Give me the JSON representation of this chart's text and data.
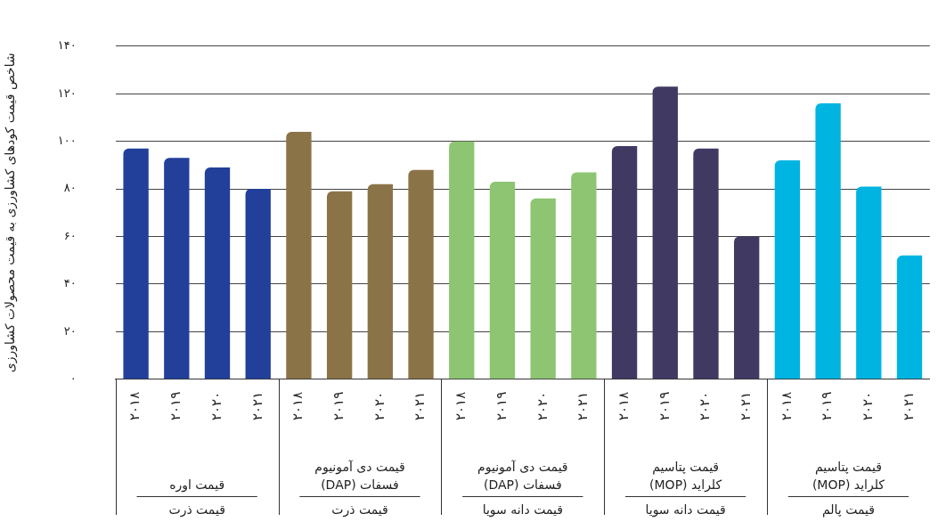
{
  "chart_data": {
    "type": "bar",
    "ylabel": "شاخص قیمت کودهای کشاورزی به قیمت محصولات کشاورزی",
    "categories": [
      "۲۰۱۸",
      "۲۰۱۹",
      "۲۰۲۰",
      "۲۰۲۱",
      "۲۰۱۸",
      "۲۰۱۹",
      "۲۰۲۰",
      "۲۰۲۱",
      "۲۰۱۸",
      "۲۰۱۹",
      "۲۰۲۰",
      "۲۰۲۱",
      "۲۰۱۸",
      "۲۰۱۹",
      "۲۰۲۰",
      "۲۰۲۱",
      "۲۰۱۸",
      "۲۰۱۹",
      "۲۰۲۰",
      "۲۰۲۱"
    ],
    "series": [
      {
        "color": "#22409a",
        "values": [
          97,
          93,
          89,
          80,
          null,
          null,
          null,
          null,
          null,
          null,
          null,
          null,
          null,
          null,
          null,
          null,
          null,
          null,
          null,
          null
        ]
      },
      {
        "color": "#8b7348",
        "values": [
          null,
          null,
          null,
          null,
          104,
          79,
          82,
          88,
          null,
          null,
          null,
          null,
          null,
          null,
          null,
          null,
          null,
          null,
          null,
          null
        ]
      },
      {
        "color": "#8dc572",
        "values": [
          null,
          null,
          null,
          null,
          null,
          null,
          null,
          null,
          100,
          83,
          76,
          87,
          null,
          null,
          null,
          null,
          null,
          null,
          null,
          null
        ]
      },
      {
        "color": "#403a63",
        "values": [
          null,
          null,
          null,
          null,
          null,
          null,
          null,
          null,
          null,
          null,
          null,
          null,
          98,
          123,
          97,
          60,
          null,
          null,
          null,
          null
        ]
      },
      {
        "color": "#00b4e2",
        "values": [
          null,
          null,
          null,
          null,
          null,
          null,
          null,
          null,
          null,
          null,
          null,
          null,
          null,
          null,
          null,
          null,
          92,
          116,
          81,
          52
        ]
      }
    ],
    "annotations": [
      "قیمت اوره",
      "قیمت ذرت",
      "قیمت دی آمونیوم فسفات (DAP)",
      "قیمت ذرت",
      "قیمت دی آمونیوم فسفات (DAP)",
      "قیمت دانه سویا",
      "قیمت پتاسیم کلراید (MOP)",
      "قیمت دانه سویا",
      "قیمت پتاسیم کلراید (MOP)",
      "قیمت پالم"
    ],
    "ylim": [
      0,
      140
    ],
    "yticks": [
      {
        "value": 0,
        "label": "۰"
      },
      {
        "value": 20,
        "label": "۲۰"
      },
      {
        "value": 40,
        "label": "۴۰"
      },
      {
        "value": 60,
        "label": "۶۰"
      },
      {
        "value": 80,
        "label": "۸۰"
      },
      {
        "value": 100,
        "label": "۱۰۰"
      },
      {
        "value": 120,
        "label": "۱۲۰"
      },
      {
        "value": 140,
        "label": "۱۴۰"
      }
    ],
    "grid": "y"
  }
}
